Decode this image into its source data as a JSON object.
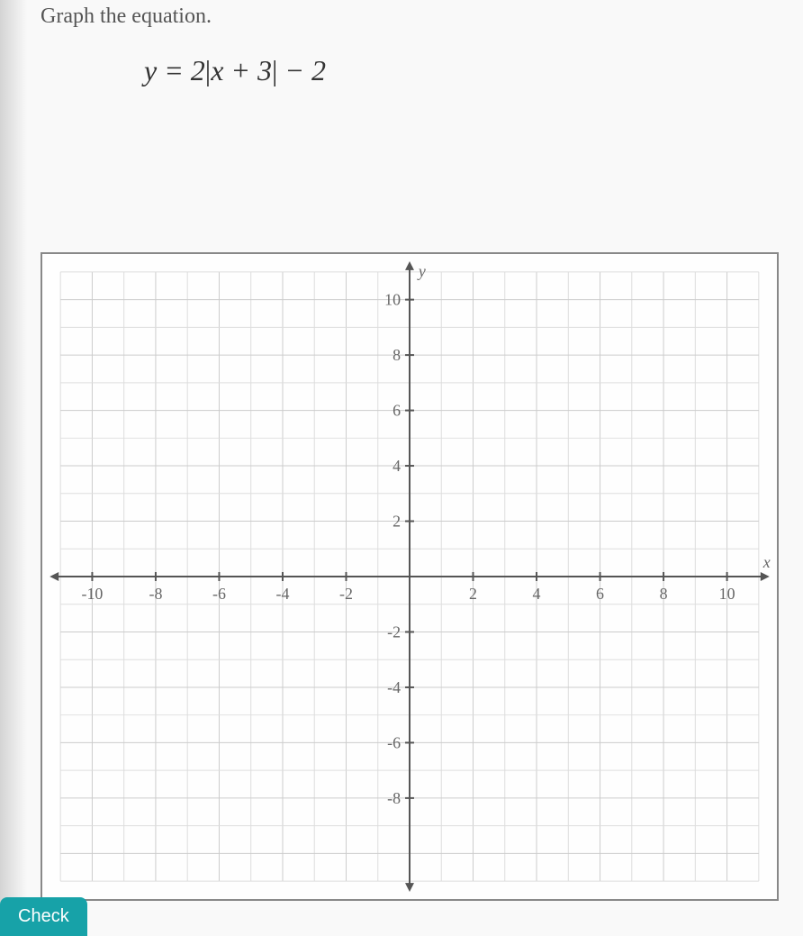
{
  "instruction": "Graph the equation.",
  "equation": {
    "prefix": "y = 2",
    "abs_content": "x + 3",
    "suffix": " − 2"
  },
  "graph": {
    "type": "coordinate-plane",
    "xlim": [
      -11,
      11
    ],
    "ylim": [
      -11,
      11
    ],
    "xtick_step": 2,
    "ytick_step": 2,
    "xtick_labels": [
      "-10",
      "-8",
      "-6",
      "-4",
      "-2",
      "2",
      "4",
      "6",
      "8",
      "10"
    ],
    "ytick_labels": [
      "-8",
      "-6",
      "-4",
      "-2",
      "2",
      "4",
      "6",
      "8",
      "10"
    ],
    "x_axis_label": "x",
    "y_axis_label": "y",
    "grid_color": "#ddd",
    "axis_color": "#555",
    "background_color": "#fefefe",
    "label_fontsize": 18,
    "label_color": "#666"
  },
  "button_label": "Check"
}
